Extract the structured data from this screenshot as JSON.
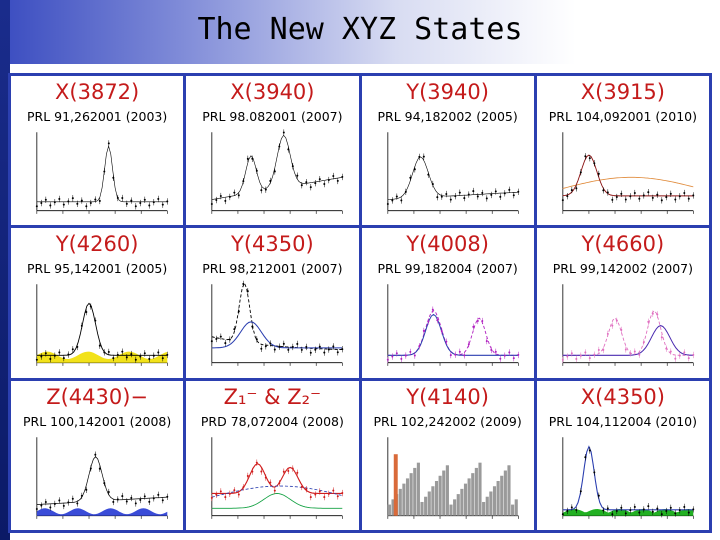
{
  "title": "The New XYZ States",
  "cells": [
    {
      "state": "X(3872)",
      "ref": "PRL 91,262001 (2003)",
      "style": "peak-sharp"
    },
    {
      "state": "X(3940)",
      "ref": "PRL 98.082001 (2007)",
      "style": "multi-peak"
    },
    {
      "state": "Y(3940)",
      "ref": "PRL 94,182002 (2005)",
      "style": "bump"
    },
    {
      "state": "X(3915)",
      "ref": "PRL 104,092001 (2010)",
      "style": "bump-color"
    },
    {
      "state": "Y(4260)",
      "ref": "PRL 95,142001 (2005)",
      "style": "peak-yellow"
    },
    {
      "state": "Y(4350)",
      "ref": "PRL 98,212001 (2007)",
      "style": "peak-dashed"
    },
    {
      "state": "Y(4008)",
      "ref": "PRL 99,182004 (2007)",
      "style": "double-purple"
    },
    {
      "state": "Y(4660)",
      "ref": "PRL 99,142002 (2007)",
      "style": "double-pink"
    },
    {
      "state": "Z(4430)−",
      "ref": "PRL 100,142001 (2008)",
      "style": "peak-blue"
    },
    {
      "state": "Z₁⁻ & Z₂⁻",
      "ref": "PRD 78,072004 (2008)",
      "style": "red-fit"
    },
    {
      "state": "Y(4140)",
      "ref": "PRL 102,242002 (2009)",
      "style": "histogram"
    },
    {
      "state": "X(4350)",
      "ref": "PRL 104,112004 (2010)",
      "style": "peak-green"
    }
  ],
  "colors": {
    "grid_border": "#2b3fb0",
    "state_label": "#c41b1b",
    "sidebar": "#1a2c8c"
  }
}
